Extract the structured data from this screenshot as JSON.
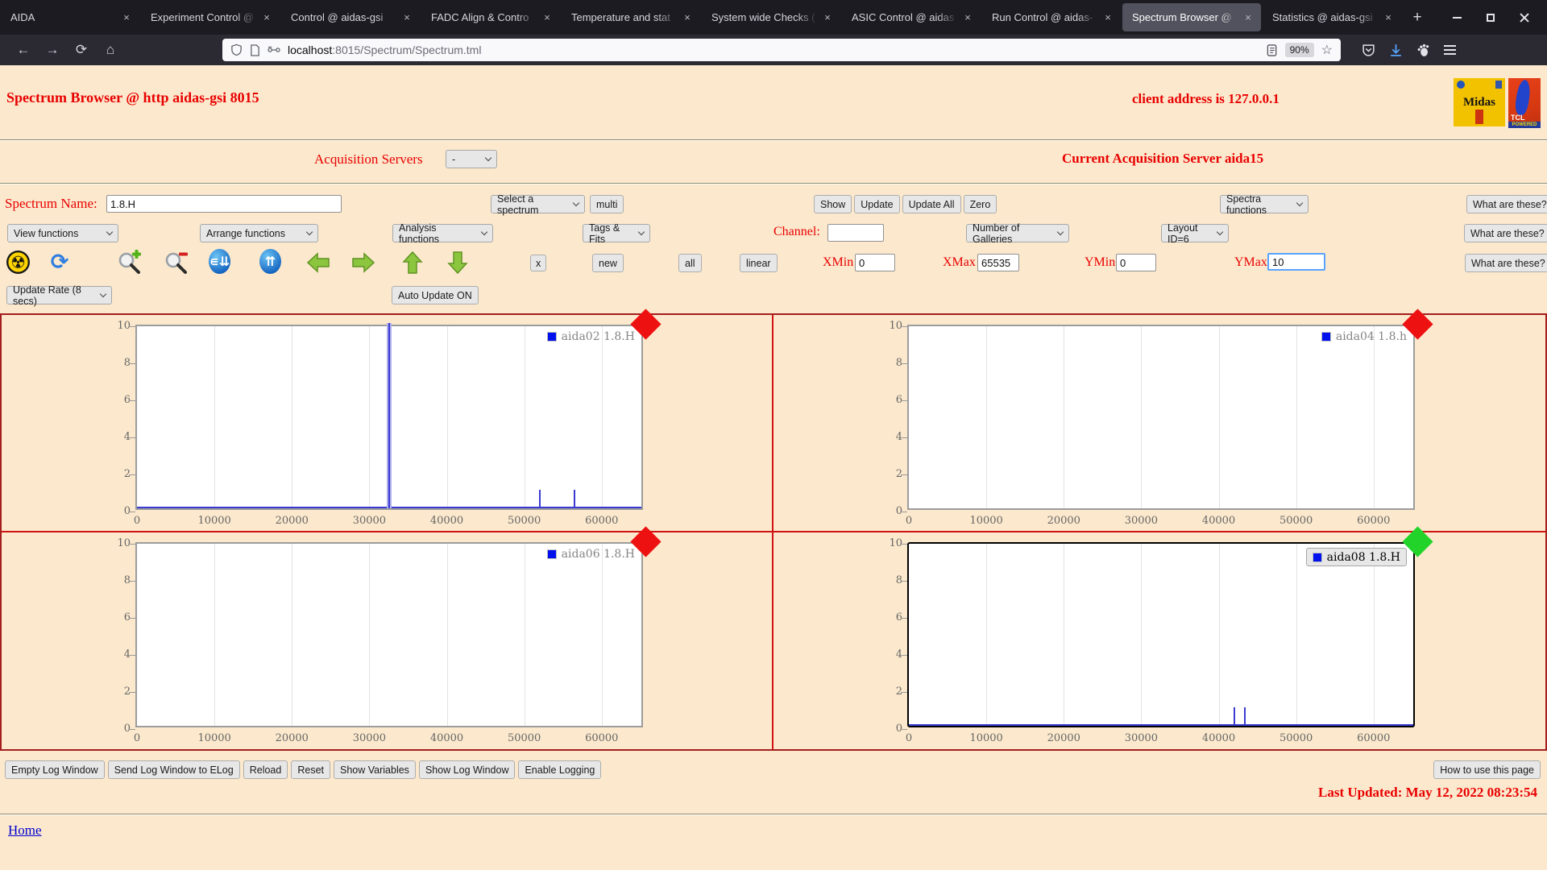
{
  "browser": {
    "tabs": [
      {
        "label": "AIDA",
        "active": false
      },
      {
        "label": "Experiment Control @",
        "active": false
      },
      {
        "label": "Control @ aidas-gsi",
        "active": false
      },
      {
        "label": "FADC Align & Contro",
        "active": false
      },
      {
        "label": "Temperature and stat",
        "active": false
      },
      {
        "label": "System wide Checks (",
        "active": false
      },
      {
        "label": "ASIC Control @ aidas",
        "active": false
      },
      {
        "label": "Run Control @ aidas-",
        "active": false
      },
      {
        "label": "Spectrum Browser @",
        "active": true
      },
      {
        "label": "Statistics @ aidas-gsi",
        "active": false
      }
    ],
    "url": {
      "host": "localhost",
      "path": ":8015/Spectrum/Spectrum.tml"
    },
    "zoom_badge": "90%"
  },
  "header": {
    "title": "Spectrum Browser @ http aidas-gsi 8015",
    "client_address": "client address is 127.0.0.1",
    "midas_logo_text": "Midas",
    "tcl_logo_text": "TCL",
    "tcl_logo_sub": "POWERED"
  },
  "acquisition": {
    "label": "Acquisition Servers",
    "selected": "-",
    "current": "Current Acquisition Server aida15"
  },
  "controls": {
    "spectrum_name_label": "Spectrum Name:",
    "spectrum_name_value": "1.8.H",
    "select_spectrum": "Select a spectrum",
    "multi_button": "multi",
    "action_buttons": [
      "Show",
      "Update",
      "Update All",
      "Zero"
    ],
    "spectra_functions": "Spectra functions",
    "what_are_these": "What are these?",
    "view_functions": "View functions",
    "arrange_functions": "Arrange functions",
    "analysis_functions": "Analysis functions",
    "tags_fits": "Tags & Fits",
    "channel_label": "Channel:",
    "channel_value": "",
    "galleries_select": "Number of Galleries",
    "layout_select": "Layout ID=6",
    "x_button": "x",
    "new_button": "new",
    "all_button": "all",
    "linear_button": "linear",
    "xmin_label": "XMin",
    "xmin_value": "0",
    "xmax_label": "XMax",
    "xmax_value": "65535",
    "ymin_label": "YMin",
    "ymin_value": "0",
    "ymax_label": "YMax",
    "ymax_value": "10",
    "update_rate": "Update Rate (8 secs)",
    "auto_update": "Auto Update ON"
  },
  "footer": {
    "log_buttons": [
      "Empty Log Window",
      "Send Log Window to ELog",
      "Reload",
      "Reset",
      "Show Variables",
      "Show Log Window",
      "Enable Logging"
    ],
    "help_button": "How to use this page",
    "last_updated": "Last Updated: May 12, 2022 08:23:54",
    "home_link": "Home"
  },
  "chart_data": {
    "type": "bar",
    "xlim": [
      0,
      65535
    ],
    "ylim": [
      0,
      10
    ],
    "x_ticks": [
      0,
      10000,
      20000,
      30000,
      40000,
      50000,
      60000
    ],
    "y_ticks": [
      0,
      2,
      4,
      6,
      8,
      10
    ],
    "legend_position": "top-right",
    "panels": [
      {
        "legend": "aida02 1.8.H",
        "diamond_color": "#ee1111",
        "selected": false,
        "baseline": true,
        "spikes": [
          {
            "x": 32600,
            "y": 10,
            "halo": true
          },
          {
            "x": 52000,
            "y": 1
          },
          {
            "x": 56500,
            "y": 1
          }
        ]
      },
      {
        "legend": "aida04 1.8.h",
        "diamond_color": "#ee1111",
        "selected": false,
        "baseline": false,
        "spikes": []
      },
      {
        "legend": "aida06 1.8.H",
        "diamond_color": "#ee1111",
        "selected": false,
        "baseline": false,
        "spikes": []
      },
      {
        "legend": "aida08 1.8.H",
        "diamond_color": "#22d42a",
        "selected": true,
        "baseline": true,
        "spikes": [
          {
            "x": 42000,
            "y": 1
          },
          {
            "x": 43400,
            "y": 1
          }
        ]
      }
    ]
  },
  "colors": {
    "page_bg": "#fce9cd",
    "accent_red": "#e80000",
    "gallery_border": "#a51d1d",
    "gallery_divider": "#cf1313",
    "spike_blue": "#3a3ad2",
    "legend_square_blue": "#0011ee",
    "diamond_red": "#ee1111",
    "diamond_green": "#22d42a"
  }
}
